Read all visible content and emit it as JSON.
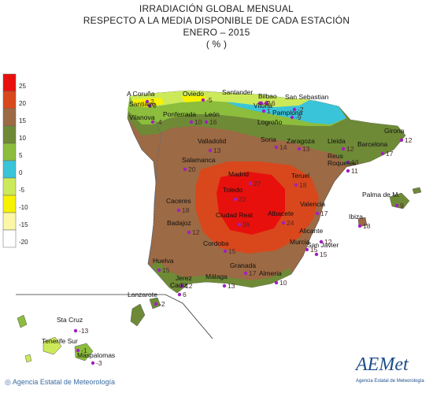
{
  "titles": {
    "line1": "IRRADIACIÓN GLOBAL MENSUAL",
    "line2": "RESPECTO A LA MEDIA DISPONIBLE DE CADA ESTACIÓN",
    "line3": "ENERO – 2015",
    "line4": "( % )"
  },
  "legend": [
    {
      "label": "25",
      "color": "#e8100d"
    },
    {
      "label": "20",
      "color": "#d9481c"
    },
    {
      "label": "15",
      "color": "#9c6a44"
    },
    {
      "label": "10",
      "color": "#6e8a36"
    },
    {
      "label": "5",
      "color": "#8cbd3c"
    },
    {
      "label": "0",
      "color": "#39c4da"
    },
    {
      "label": "-5",
      "color": "#cce95a"
    },
    {
      "label": "-10",
      "color": "#f6f200"
    },
    {
      "label": "-15",
      "color": "#fbf7a6"
    },
    {
      "label": "-20",
      "color": "#ffffff"
    }
  ],
  "stations": [
    {
      "name": "A Coruña",
      "value": "2"
    },
    {
      "name": "Santiago",
      "value": "0"
    },
    {
      "name": "Oviedo",
      "value": "-5"
    },
    {
      "name": "Santander",
      "value": "-3"
    },
    {
      "name": "Bilbao",
      "value": "-6"
    },
    {
      "name": "San Sebastian",
      "value": "-2"
    },
    {
      "name": "Vitoria",
      "value": "1"
    },
    {
      "name": "Pamplona",
      "value": "-2"
    },
    {
      "name": "Logroño",
      "value": "-9"
    },
    {
      "name": "Vilanova",
      "value": "-4"
    },
    {
      "name": "Ponferrada",
      "value": "10"
    },
    {
      "name": "León",
      "value": "16"
    },
    {
      "name": "Valladolid",
      "value": "13"
    },
    {
      "name": "Soria",
      "value": "14"
    },
    {
      "name": "Zaragoza",
      "value": "13"
    },
    {
      "name": "Lleida",
      "value": "12"
    },
    {
      "name": "Girona",
      "value": "12"
    },
    {
      "name": "Barcelona",
      "value": "17"
    },
    {
      "name": "Reus",
      "value": "13"
    },
    {
      "name": "Roquetes",
      "value": "11"
    },
    {
      "name": "Salamanca",
      "value": "20"
    },
    {
      "name": "Madrid",
      "value": "27"
    },
    {
      "name": "Toledo",
      "value": "22"
    },
    {
      "name": "Teruel",
      "value": "18"
    },
    {
      "name": "Caceres",
      "value": "18"
    },
    {
      "name": "Ciudad Real",
      "value": "26"
    },
    {
      "name": "Albacete",
      "value": "24"
    },
    {
      "name": "Valencia",
      "value": "17"
    },
    {
      "name": "Palma de M.",
      "value": "9"
    },
    {
      "name": "Ibiza",
      "value": "18"
    },
    {
      "name": "Badajoz",
      "value": "12"
    },
    {
      "name": "Alicante",
      "value": "12"
    },
    {
      "name": "Murcia",
      "value": "15"
    },
    {
      "name": "San Javier",
      "value": "15"
    },
    {
      "name": "Cordoba",
      "value": "15"
    },
    {
      "name": "Huelva",
      "value": "15"
    },
    {
      "name": "Granada",
      "value": "17"
    },
    {
      "name": "Jerez",
      "value": "12"
    },
    {
      "name": "Cadiz",
      "value": "6"
    },
    {
      "name": "Málaga",
      "value": "13"
    },
    {
      "name": "Almeria",
      "value": "10"
    },
    {
      "name": "Lanzarote",
      "value": "-2"
    },
    {
      "name": "Sta Cruz",
      "value": "-13"
    },
    {
      "name": "Tenerife Sur",
      "value": "-1"
    },
    {
      "name": "Maspalomas",
      "value": "-3"
    }
  ],
  "footer": "Agencia Estatal de Meteorología",
  "logo": {
    "text": "AEMet",
    "sub": "Agencia Estatal de Meteorología"
  }
}
